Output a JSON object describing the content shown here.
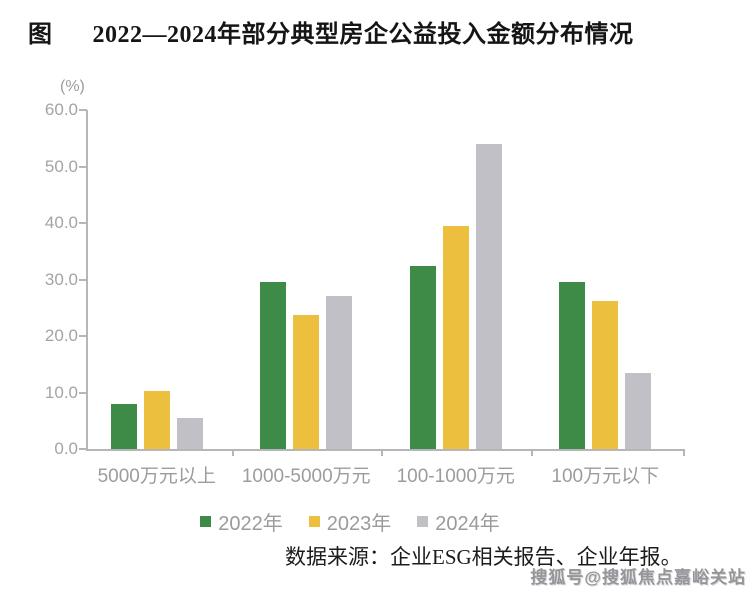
{
  "title": {
    "prefix": "图",
    "text": "2022—2024年部分典型房企公益投入金额分布情况"
  },
  "axis": {
    "unit_label": "(%)",
    "y_ticks": [
      "60.0",
      "50.0",
      "40.0",
      "30.0",
      "20.0",
      "10.0",
      "0.0"
    ]
  },
  "chart_data": {
    "type": "bar",
    "title": "2022—2024年部分典型房企公益投入金额分布情况",
    "categories": [
      "5000万元以上",
      "1000-5000万元",
      "100-1000万元",
      "100万元以下"
    ],
    "series": [
      {
        "name": "2022年",
        "color": "#3d8b46",
        "values": [
          8.0,
          29.5,
          32.4,
          29.5
        ]
      },
      {
        "name": "2023年",
        "color": "#ecbf3e",
        "values": [
          10.3,
          23.7,
          39.4,
          26.2
        ]
      },
      {
        "name": "2024年",
        "color": "#c0c0c6",
        "values": [
          5.4,
          27.0,
          53.9,
          13.5
        ]
      }
    ],
    "xlabel": "",
    "ylabel": "(%)",
    "ylim": [
      0,
      60
    ],
    "y_tick_step": 10,
    "grid": false,
    "legend_position": "bottom"
  },
  "footer": {
    "source": "数据来源：企业ESG相关报告、企业年报。",
    "watermark": "搜狐号@搜狐焦点嘉峪关站"
  },
  "colors": {
    "bar_2022": "#3d8b46",
    "bar_2023": "#ecbf3e",
    "bar_2024": "#c0c0c6",
    "axis_line": "#b6b6b8",
    "axis_text": "#9c9c9e",
    "title_text": "#151515"
  }
}
